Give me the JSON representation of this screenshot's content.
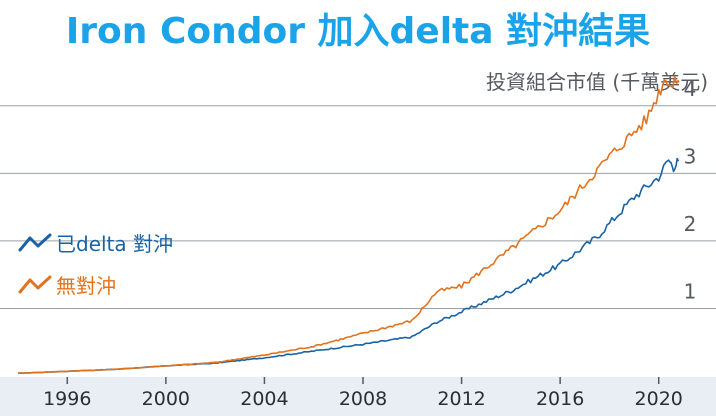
{
  "chart_data": {
    "type": "line",
    "title": "Iron Condor 加入delta 對沖結果",
    "ylabel": "投資組合市值 (千萬美元)",
    "xlim": [
      1994,
      2022
    ],
    "ylim": [
      0,
      4.5
    ],
    "yticks": [
      1,
      2,
      3,
      4
    ],
    "xticks": [
      1996,
      2000,
      2004,
      2008,
      2012,
      2016,
      2020
    ],
    "grid": true,
    "series": [
      {
        "name": "已delta 對沖",
        "color": "#1a63a3",
        "points": [
          [
            1994.0,
            0.04
          ],
          [
            1996.0,
            0.07
          ],
          [
            1998.0,
            0.1
          ],
          [
            2000.0,
            0.15
          ],
          [
            2002.0,
            0.19
          ],
          [
            2004.0,
            0.27
          ],
          [
            2006.0,
            0.37
          ],
          [
            2008.0,
            0.47
          ],
          [
            2010.0,
            0.58
          ],
          [
            2011.0,
            0.8
          ],
          [
            2012.0,
            0.95
          ],
          [
            2014.0,
            1.26
          ],
          [
            2016.0,
            1.65
          ],
          [
            2017.5,
            2.06
          ],
          [
            2019.0,
            2.65
          ],
          [
            2020.0,
            2.95
          ],
          [
            2020.4,
            3.2
          ],
          [
            2020.6,
            3.1
          ],
          [
            2020.8,
            3.18
          ]
        ]
      },
      {
        "name": "無對沖",
        "color": "#e2731e",
        "points": [
          [
            1994.0,
            0.04
          ],
          [
            1996.0,
            0.07
          ],
          [
            1998.0,
            0.1
          ],
          [
            2000.0,
            0.15
          ],
          [
            2002.0,
            0.2
          ],
          [
            2004.0,
            0.31
          ],
          [
            2006.0,
            0.44
          ],
          [
            2008.0,
            0.63
          ],
          [
            2010.0,
            0.82
          ],
          [
            2011.0,
            1.25
          ],
          [
            2012.0,
            1.33
          ],
          [
            2014.0,
            1.88
          ],
          [
            2016.0,
            2.45
          ],
          [
            2018.0,
            3.25
          ],
          [
            2019.5,
            3.8
          ],
          [
            2020.0,
            4.2
          ],
          [
            2020.3,
            4.43
          ],
          [
            2020.5,
            4.28
          ],
          [
            2020.8,
            4.38
          ]
        ]
      }
    ]
  }
}
